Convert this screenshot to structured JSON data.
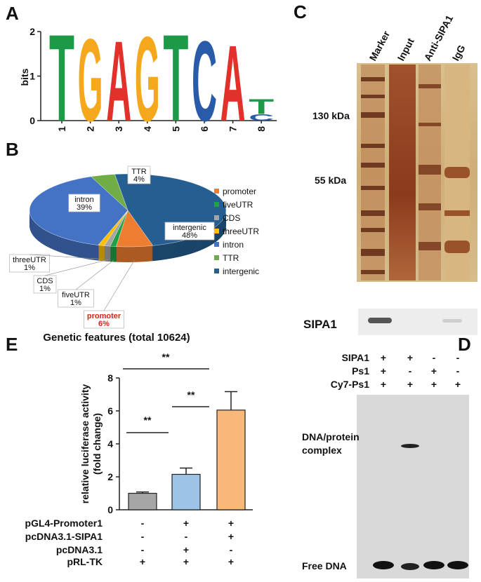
{
  "panel_labels": [
    "A",
    "B",
    "C",
    "D",
    "E"
  ],
  "chart_data": [
    {
      "type": "logo",
      "y_label": "bits",
      "ylim": [
        0,
        2
      ],
      "yticks": [
        0,
        1,
        2
      ],
      "categories": [
        "1",
        "2",
        "3",
        "4",
        "5",
        "6",
        "7",
        "8"
      ],
      "letters": [
        [
          "T"
        ],
        [
          "G"
        ],
        [
          "A"
        ],
        [
          "G"
        ],
        [
          "T"
        ],
        [
          "C"
        ],
        [
          "A"
        ],
        [
          "C",
          "T"
        ]
      ],
      "values": [
        [
          2
        ],
        [
          1.9
        ],
        [
          1.85
        ],
        [
          1.95
        ],
        [
          2
        ],
        [
          1.85
        ],
        [
          1.75
        ],
        [
          0.15,
          0.35
        ]
      ],
      "letter_colors": {
        "A": "#e2312b",
        "C": "#2a5ba8",
        "G": "#f6a81c",
        "T": "#1c9a48"
      }
    },
    {
      "type": "pie",
      "title": "Genetic features (total 10624)",
      "categories": [
        "promoter",
        "fiveUTR",
        "CDS",
        "threeUTR",
        "intron",
        "TTR",
        "intergenic"
      ],
      "values": [
        6,
        1,
        1,
        1,
        39,
        4,
        48
      ],
      "value_labels": [
        "6%",
        "1%",
        "1%",
        "1%",
        "39%",
        "4%",
        "48%"
      ],
      "colors": [
        "#ed7d31",
        "#21a046",
        "#a5a5a5",
        "#ffc000",
        "#4472c4",
        "#70ad47",
        "#255e91"
      ],
      "highlight": "promoter"
    },
    {
      "type": "bar",
      "y_label": [
        "relative luciferase activity",
        "(fold change)"
      ],
      "ylim": [
        0,
        8
      ],
      "yticks": [
        0,
        2,
        4,
        6,
        8
      ],
      "values": [
        1,
        2.15,
        6.05
      ],
      "errors": [
        0.08,
        0.38,
        1.12
      ],
      "colors": [
        "#a6a6a6",
        "#9dc3e6",
        "#f8b878"
      ],
      "annotations": [
        "**",
        "**",
        "**"
      ],
      "conditions": [
        {
          "label": "pGL4-Promoter1",
          "signs": [
            "-",
            "+",
            "+"
          ]
        },
        {
          "label": "pcDNA3.1-SIPA1",
          "signs": [
            "-",
            "-",
            "+"
          ]
        },
        {
          "label": "pcDNA3.1",
          "signs": [
            "-",
            "+",
            "-"
          ]
        },
        {
          "label": "pRL-TK",
          "signs": [
            "+",
            "+",
            "+"
          ]
        }
      ]
    }
  ],
  "panel_c": {
    "lanes": [
      "Marker",
      "Input",
      "Anti-SIPA1",
      "IgG"
    ],
    "markers": [
      "130 kDa",
      "55 kDa"
    ],
    "blot_label": "SIPA1"
  },
  "panel_d": {
    "rows": [
      {
        "label": "SIPA1",
        "signs": [
          "+",
          "+",
          "-",
          "-"
        ]
      },
      {
        "label": "Ps1",
        "signs": [
          "+",
          "-",
          "+",
          "-"
        ]
      },
      {
        "label": "Cy7-Ps1",
        "signs": [
          "+",
          "+",
          "+",
          "+"
        ]
      }
    ],
    "complex_label": [
      "DNA/protein",
      "complex"
    ],
    "free_label": "Free DNA"
  }
}
